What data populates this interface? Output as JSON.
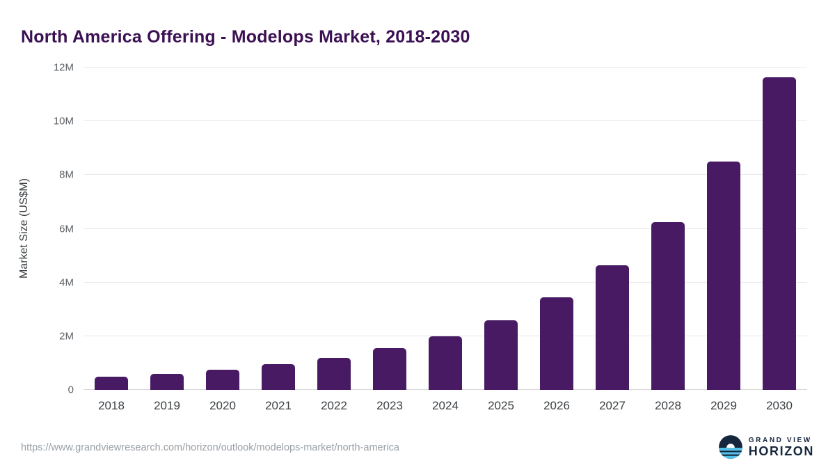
{
  "title": "North America Offering - Modelops Market, 2018-2030",
  "footer": {
    "url": "https://www.grandviewresearch.com/horizon/outlook/modelops-market/north-america",
    "logo_top": "GRAND VIEW",
    "logo_bottom": "HORIZON"
  },
  "colors": {
    "bar": "#471a63",
    "title": "#3b1053",
    "grid": "#e8e8e8",
    "axis": "#d4d4d4",
    "tick": "#5f6368",
    "logo_navy": "#16263c",
    "logo_blue": "#56c1e8"
  },
  "chart_data": {
    "type": "bar",
    "categories": [
      "2018",
      "2019",
      "2020",
      "2021",
      "2022",
      "2023",
      "2024",
      "2025",
      "2026",
      "2027",
      "2028",
      "2029",
      "2030"
    ],
    "values": [
      0.5,
      0.6,
      0.75,
      0.95,
      1.2,
      1.55,
      2.0,
      2.6,
      3.45,
      4.65,
      6.25,
      8.5,
      11.65
    ],
    "title": "North America Offering - Modelops Market, 2018-2030",
    "xlabel": "",
    "ylabel": "Market Size (US$M)",
    "ylim": [
      0,
      12
    ],
    "yticks": [
      0,
      2,
      4,
      6,
      8,
      10,
      12
    ],
    "ytick_labels": [
      "0",
      "2M",
      "4M",
      "6M",
      "8M",
      "10M",
      "12M"
    ],
    "grid": "horizontal",
    "legend": "none"
  }
}
